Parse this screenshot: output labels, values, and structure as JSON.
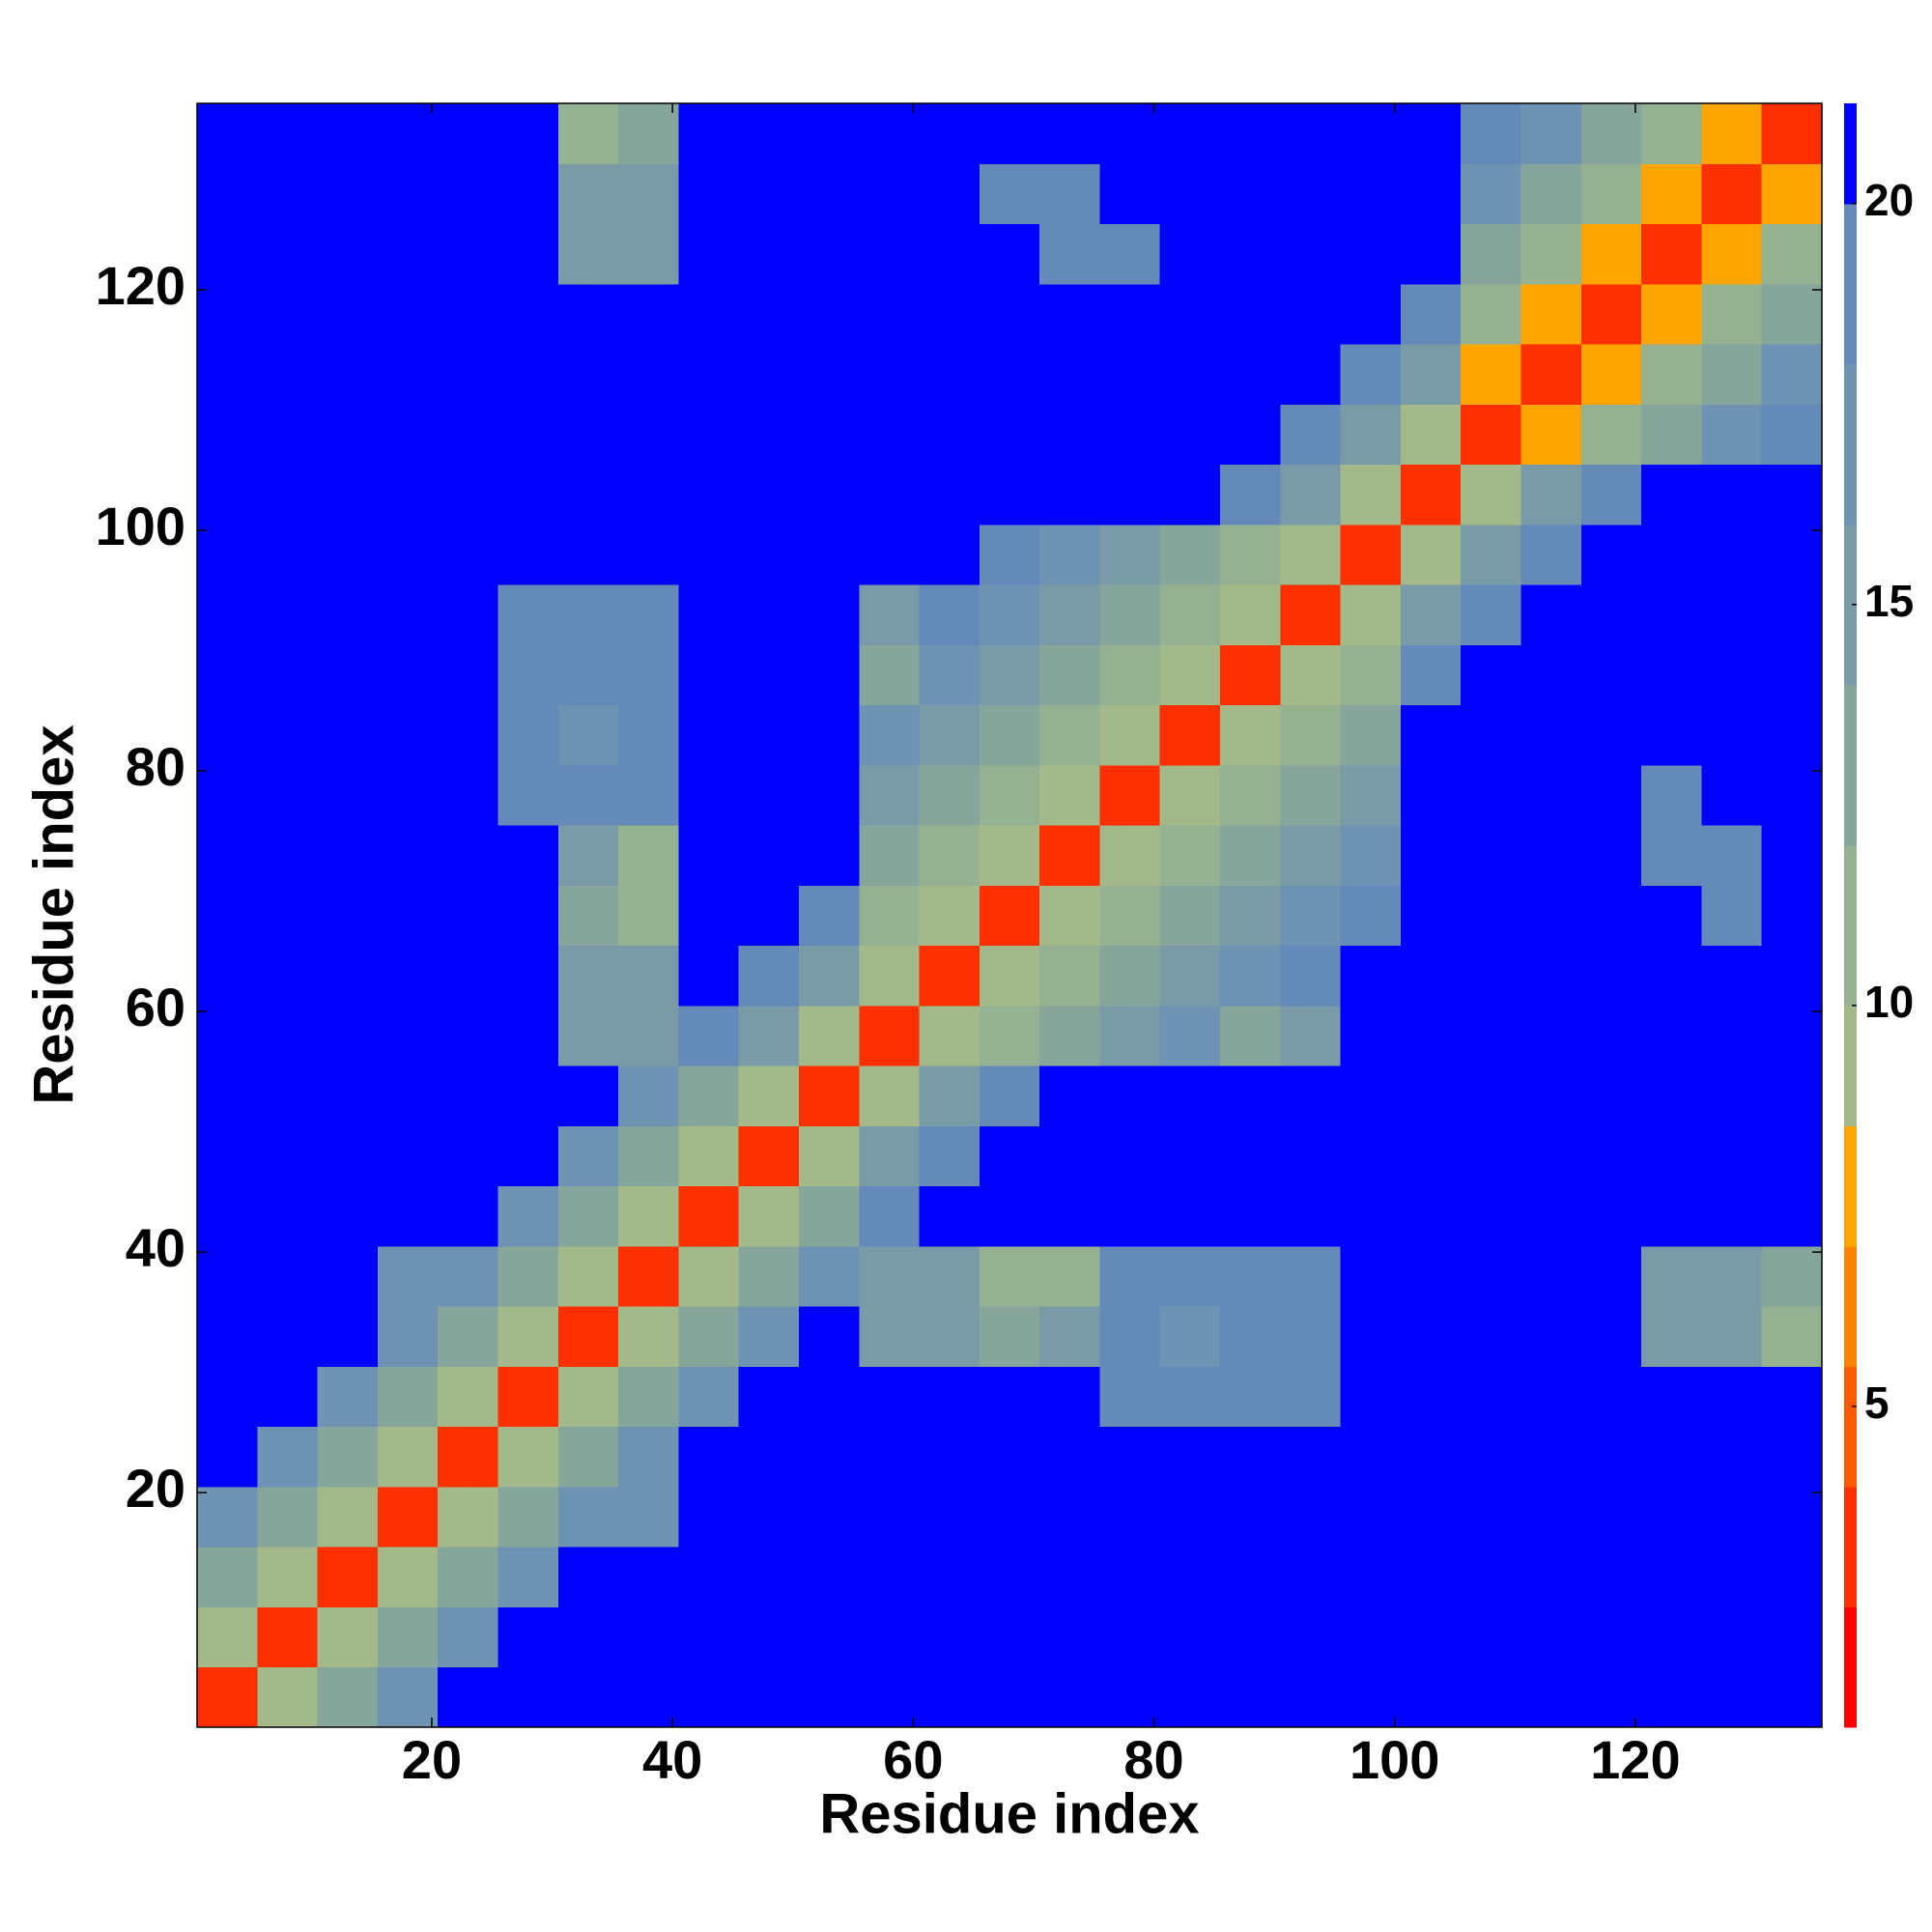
{
  "chart_data": {
    "type": "heatmap",
    "x_label": "Residue index",
    "y_label": "Residue index",
    "xlim": [
      0.5,
      135.5
    ],
    "ylim": [
      0.5,
      135.5
    ],
    "xticks": [
      20,
      40,
      60,
      80,
      100,
      120
    ],
    "yticks": [
      20,
      40,
      60,
      80,
      100,
      120
    ],
    "cell_size": 5,
    "x": [
      3,
      8,
      13,
      18,
      23,
      28,
      33,
      38,
      43,
      48,
      53,
      58,
      63,
      68,
      73,
      78,
      83,
      88,
      93,
      98,
      103,
      108,
      113,
      118,
      123,
      128,
      133
    ],
    "y": [
      3,
      8,
      13,
      18,
      23,
      28,
      33,
      38,
      43,
      48,
      53,
      58,
      63,
      68,
      73,
      78,
      83,
      88,
      93,
      98,
      103,
      108,
      113,
      118,
      123,
      128,
      133
    ],
    "z": [
      [
        3,
        9,
        14,
        18,
        21,
        21,
        21,
        21,
        21,
        21,
        21,
        21,
        21,
        21,
        21,
        21,
        21,
        21,
        21,
        21,
        21,
        21,
        21,
        21,
        21,
        21,
        21
      ],
      [
        9,
        3,
        9,
        14,
        18,
        21,
        21,
        21,
        21,
        21,
        21,
        21,
        21,
        21,
        21,
        21,
        21,
        21,
        21,
        21,
        21,
        21,
        21,
        21,
        21,
        21,
        21
      ],
      [
        14,
        9,
        3,
        9,
        14,
        18,
        21,
        21,
        21,
        21,
        21,
        21,
        21,
        21,
        21,
        21,
        21,
        21,
        21,
        21,
        21,
        21,
        21,
        21,
        21,
        21,
        21
      ],
      [
        18,
        14,
        9,
        3,
        9,
        14,
        17,
        17,
        21,
        21,
        21,
        21,
        21,
        21,
        21,
        21,
        21,
        21,
        21,
        21,
        21,
        21,
        21,
        21,
        21,
        21,
        21
      ],
      [
        21,
        18,
        14,
        9,
        3,
        9,
        14,
        17,
        21,
        21,
        21,
        21,
        21,
        21,
        21,
        21,
        21,
        21,
        21,
        21,
        21,
        21,
        21,
        21,
        21,
        21,
        21
      ],
      [
        21,
        21,
        18,
        14,
        9,
        3,
        9,
        14,
        18,
        21,
        21,
        21,
        21,
        21,
        21,
        19,
        19,
        19,
        19,
        21,
        21,
        21,
        21,
        21,
        21,
        21,
        21
      ],
      [
        21,
        21,
        21,
        17,
        14,
        9,
        3,
        9,
        14,
        18,
        21,
        15,
        15,
        13,
        15,
        19,
        18,
        19,
        19,
        21,
        21,
        21,
        21,
        21,
        16,
        16,
        12
      ],
      [
        21,
        21,
        21,
        17,
        17,
        14,
        9,
        3,
        9,
        14,
        18,
        15,
        15,
        11,
        12,
        19,
        19,
        19,
        19,
        21,
        21,
        21,
        21,
        21,
        16,
        16,
        13
      ],
      [
        21,
        21,
        21,
        21,
        21,
        18,
        14,
        9,
        3,
        9,
        14,
        19,
        21,
        21,
        21,
        21,
        21,
        21,
        21,
        21,
        21,
        21,
        21,
        21,
        21,
        21,
        21
      ],
      [
        21,
        21,
        21,
        21,
        21,
        21,
        18,
        14,
        9,
        3,
        9,
        15,
        19,
        21,
        21,
        21,
        21,
        21,
        21,
        21,
        21,
        21,
        21,
        21,
        21,
        21,
        21
      ],
      [
        21,
        21,
        21,
        21,
        21,
        21,
        21,
        18,
        14,
        9,
        3,
        9,
        15,
        19,
        21,
        21,
        21,
        21,
        21,
        21,
        21,
        21,
        21,
        21,
        21,
        21,
        21
      ],
      [
        21,
        21,
        21,
        21,
        21,
        21,
        15,
        15,
        19,
        15,
        9,
        3,
        9,
        12,
        14,
        16,
        18,
        14,
        15,
        21,
        21,
        21,
        21,
        21,
        21,
        21,
        21
      ],
      [
        21,
        21,
        21,
        21,
        21,
        21,
        15,
        15,
        21,
        19,
        15,
        9,
        3,
        9,
        12,
        14,
        16,
        18,
        19,
        21,
        21,
        21,
        21,
        21,
        21,
        21,
        21
      ],
      [
        21,
        21,
        21,
        21,
        21,
        21,
        13,
        11,
        21,
        21,
        19,
        12,
        9,
        3,
        9,
        12,
        14,
        16,
        18,
        19,
        21,
        21,
        21,
        21,
        21,
        19,
        21
      ],
      [
        21,
        21,
        21,
        21,
        21,
        21,
        15,
        12,
        21,
        21,
        21,
        14,
        12,
        9,
        3,
        9,
        12,
        14,
        16,
        18,
        21,
        21,
        21,
        21,
        19,
        19,
        21
      ],
      [
        21,
        21,
        21,
        21,
        21,
        19,
        19,
        19,
        21,
        21,
        21,
        16,
        14,
        12,
        9,
        3,
        9,
        12,
        14,
        16,
        21,
        21,
        21,
        21,
        19,
        21,
        21
      ],
      [
        21,
        21,
        21,
        21,
        21,
        19,
        18,
        19,
        21,
        21,
        21,
        18,
        16,
        14,
        12,
        9,
        3,
        9,
        12,
        14,
        21,
        21,
        21,
        21,
        21,
        21,
        21
      ],
      [
        21,
        21,
        21,
        21,
        21,
        19,
        19,
        19,
        21,
        21,
        21,
        14,
        18,
        16,
        14,
        12,
        9,
        3,
        9,
        12,
        19,
        21,
        21,
        21,
        21,
        21,
        21
      ],
      [
        21,
        21,
        21,
        21,
        21,
        19,
        19,
        19,
        21,
        21,
        21,
        15,
        19,
        18,
        16,
        14,
        12,
        9,
        3,
        9,
        15,
        19,
        21,
        21,
        21,
        21,
        21
      ],
      [
        21,
        21,
        21,
        21,
        21,
        21,
        21,
        21,
        21,
        21,
        21,
        21,
        21,
        19,
        18,
        16,
        14,
        12,
        9,
        3,
        9,
        15,
        19,
        21,
        21,
        21,
        21
      ],
      [
        21,
        21,
        21,
        21,
        21,
        21,
        21,
        21,
        21,
        21,
        21,
        21,
        21,
        21,
        21,
        21,
        21,
        19,
        15,
        9,
        3,
        9,
        15,
        19,
        21,
        21,
        21
      ],
      [
        21,
        21,
        21,
        21,
        21,
        21,
        21,
        21,
        21,
        21,
        21,
        21,
        21,
        21,
        21,
        21,
        21,
        21,
        19,
        15,
        9,
        3,
        8,
        11,
        14,
        17,
        19
      ],
      [
        21,
        21,
        21,
        21,
        21,
        21,
        21,
        21,
        21,
        21,
        21,
        21,
        21,
        21,
        21,
        21,
        21,
        21,
        21,
        19,
        15,
        8,
        3,
        8,
        11,
        14,
        17
      ],
      [
        21,
        21,
        21,
        21,
        21,
        21,
        21,
        21,
        21,
        21,
        21,
        21,
        21,
        21,
        21,
        21,
        21,
        21,
        21,
        21,
        19,
        11,
        8,
        3,
        8,
        11,
        14
      ],
      [
        21,
        21,
        21,
        21,
        21,
        21,
        16,
        16,
        21,
        21,
        21,
        21,
        21,
        21,
        19,
        19,
        21,
        21,
        21,
        21,
        21,
        14,
        11,
        8,
        3,
        8,
        11
      ],
      [
        21,
        21,
        21,
        21,
        21,
        21,
        16,
        16,
        21,
        21,
        21,
        21,
        21,
        19,
        19,
        21,
        21,
        21,
        21,
        21,
        21,
        17,
        14,
        11,
        8,
        3,
        8
      ],
      [
        21,
        21,
        21,
        21,
        21,
        21,
        12,
        13,
        21,
        21,
        21,
        21,
        21,
        21,
        21,
        21,
        21,
        21,
        21,
        21,
        21,
        19,
        17,
        14,
        11,
        8,
        3
      ]
    ],
    "colorbar": {
      "zlim": [
        1,
        21.25
      ],
      "ticks": [
        5,
        10,
        15,
        20
      ],
      "levels": [
        {
          "max": 2.5,
          "color": "#ff0000"
        },
        {
          "max": 4,
          "color": "#ff3000"
        },
        {
          "max": 5.5,
          "color": "#ff5a00"
        },
        {
          "max": 7,
          "color": "#ff8200"
        },
        {
          "max": 8.5,
          "color": "#ffa500"
        },
        {
          "max": 10,
          "color": "#a3b98a"
        },
        {
          "max": 12,
          "color": "#94b192"
        },
        {
          "max": 14,
          "color": "#86a69c"
        },
        {
          "max": 16,
          "color": "#799ba7"
        },
        {
          "max": 18,
          "color": "#6f93b2"
        },
        {
          "max": 20,
          "color": "#648aba"
        },
        {
          "max": 21.25,
          "color": "#0000ff"
        }
      ]
    }
  }
}
